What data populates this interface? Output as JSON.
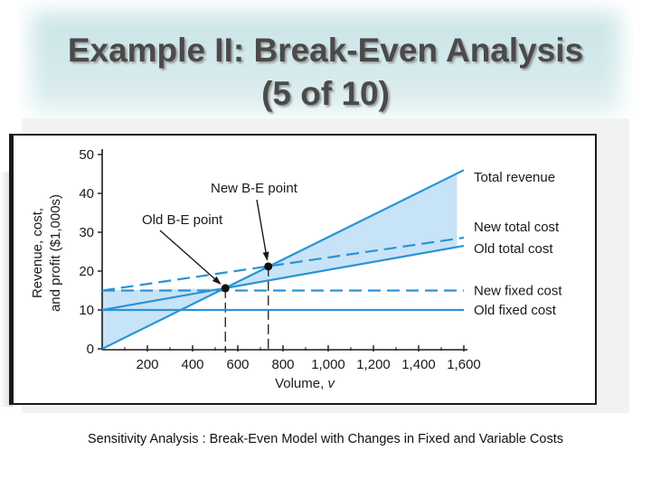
{
  "slide": {
    "title_line1": "Example II: Break-Even   Analysis",
    "title_line2": "(5 of 10)",
    "caption": "Sensitivity Analysis : Break-Even Model with  Changes in Fixed and Variable Costs"
  },
  "chart_data": {
    "type": "line",
    "xlabel": "Volume, v",
    "ylabel": [
      "Revenue, cost,",
      "and profit ($1,000s)"
    ],
    "xlim": [
      0,
      1600
    ],
    "ylim": [
      0,
      50
    ],
    "x_ticks": [
      200,
      400,
      600,
      800,
      1000,
      1200,
      1400,
      1600
    ],
    "x_tick_labels": [
      "200",
      "400",
      "600",
      "800",
      "1,000",
      "1,200",
      "1,400",
      "1,600"
    ],
    "y_ticks": [
      0,
      10,
      20,
      30,
      40,
      50
    ],
    "y_tick_labels": [
      "0",
      "10",
      "20",
      "30",
      "40",
      "50"
    ],
    "series": [
      {
        "name": "Total revenue",
        "x": [
          0,
          1600
        ],
        "y": [
          0,
          46
        ],
        "style": "solid"
      },
      {
        "name": "New total cost",
        "x": [
          0,
          1600
        ],
        "y": [
          15,
          28.6
        ],
        "style": "dashed"
      },
      {
        "name": "Old total cost",
        "x": [
          0,
          1600
        ],
        "y": [
          10,
          26.5
        ],
        "style": "solid"
      },
      {
        "name": "New fixed cost",
        "x": [
          0,
          1600
        ],
        "y": [
          15,
          15
        ],
        "style": "dashed"
      },
      {
        "name": "Old fixed cost",
        "x": [
          0,
          1600
        ],
        "y": [
          10,
          10
        ],
        "style": "solid"
      }
    ],
    "points": [
      {
        "label": "Old B-E point",
        "x": 545,
        "y": 15.6
      },
      {
        "label": "New B-E point",
        "x": 735,
        "y": 21.2
      }
    ],
    "colors": {
      "line": "#2a93d5",
      "fill": "#c7e3f7",
      "frame": "#1a1a1a"
    }
  }
}
